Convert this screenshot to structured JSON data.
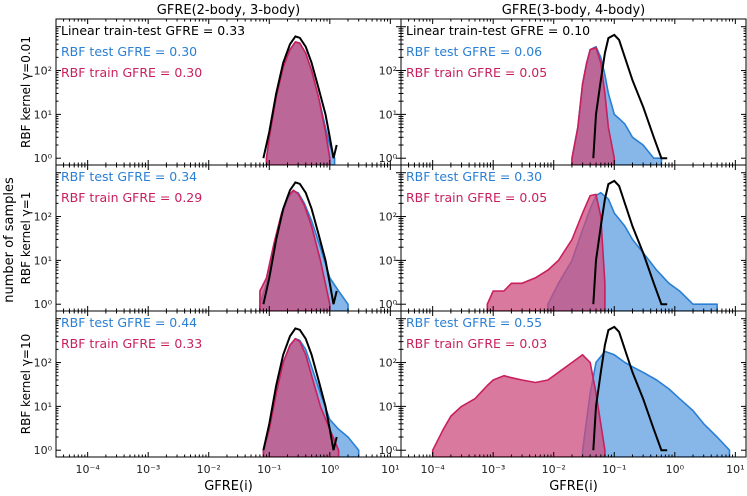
{
  "colors": {
    "linear": "#000000",
    "test": "#2a7fd4",
    "test_fill": "#5f9fe0",
    "train": "#c8205e",
    "train_fill": "#cc4c7c",
    "axis": "#000000"
  },
  "figure": {
    "ylabel_shared": "number of samples"
  },
  "chart_data": [
    {
      "type": "area",
      "panel": "row1-col1",
      "title": "GFRE(2-body, 3-body)",
      "ylabel": "RBF kernel γ=0.01",
      "xlabel": "",
      "xscale": "log",
      "yscale": "log",
      "xlim": [
        3e-05,
        15
      ],
      "ylim": [
        0.7,
        1500
      ],
      "xticks": [
        "10⁻⁴",
        "10⁻³",
        "10⁻²",
        "10⁻¹",
        "10⁰",
        "10¹"
      ],
      "yticks": [
        "10⁰",
        "10¹",
        "10²"
      ],
      "show_xtick_labels": false,
      "annotations": [
        {
          "text": "Linear train-test GFRE = 0.33",
          "color": "linear"
        },
        {
          "text": "RBF test GFRE = 0.30",
          "color": "test"
        },
        {
          "text": "RBF train GFRE = 0.30",
          "color": "train"
        }
      ],
      "series": [
        {
          "role": "linear",
          "x": [
            0.08,
            0.1,
            0.13,
            0.17,
            0.22,
            0.27,
            0.32,
            0.4,
            0.5,
            0.65,
            0.85,
            1.0,
            1.15,
            1.3
          ],
          "y": [
            1,
            4,
            30,
            150,
            400,
            600,
            560,
            350,
            150,
            40,
            10,
            3,
            1,
            2
          ]
        },
        {
          "role": "test",
          "x": [
            0.09,
            0.1,
            0.13,
            0.17,
            0.22,
            0.27,
            0.32,
            0.4,
            0.5,
            0.65,
            0.85,
            1.0,
            1.2
          ],
          "y": [
            1,
            3,
            25,
            120,
            300,
            450,
            420,
            250,
            100,
            25,
            5,
            2,
            1
          ]
        },
        {
          "role": "train",
          "x": [
            0.09,
            0.1,
            0.13,
            0.17,
            0.22,
            0.27,
            0.32,
            0.4,
            0.5,
            0.65,
            0.85,
            1.0
          ],
          "y": [
            1,
            3,
            25,
            120,
            300,
            450,
            420,
            250,
            100,
            25,
            4,
            1
          ]
        }
      ]
    },
    {
      "type": "area",
      "panel": "row1-col2",
      "title": "GFRE(3-body, 4-body)",
      "ylabel": "",
      "xlabel": "",
      "xscale": "log",
      "yscale": "log",
      "xlim": [
        3e-05,
        15
      ],
      "ylim": [
        0.7,
        1500
      ],
      "xticks": [
        "10⁻⁴",
        "10⁻³",
        "10⁻²",
        "10⁻¹",
        "10⁰",
        "10¹"
      ],
      "yticks": [
        "10⁰",
        "10¹",
        "10²"
      ],
      "show_xtick_labels": false,
      "annotations": [
        {
          "text": "Linear train-test GFRE = 0.10",
          "color": "linear"
        },
        {
          "text": "RBF test GFRE = 0.06",
          "color": "test"
        },
        {
          "text": "RBF train GFRE = 0.05",
          "color": "train"
        }
      ],
      "series": [
        {
          "role": "linear",
          "x": [
            0.045,
            0.05,
            0.06,
            0.07,
            0.08,
            0.1,
            0.12,
            0.15,
            0.2,
            0.3,
            0.45,
            0.6,
            0.75
          ],
          "y": [
            1,
            10,
            60,
            250,
            550,
            650,
            500,
            200,
            60,
            15,
            3,
            1,
            1
          ]
        },
        {
          "role": "test",
          "x": [
            0.02,
            0.025,
            0.03,
            0.035,
            0.04,
            0.05,
            0.06,
            0.07,
            0.08,
            0.1,
            0.12,
            0.15,
            0.2,
            0.3,
            0.45,
            0.6
          ],
          "y": [
            1,
            5,
            50,
            150,
            300,
            350,
            200,
            80,
            30,
            10,
            8,
            6,
            3,
            2,
            1,
            1
          ]
        },
        {
          "role": "train",
          "x": [
            0.02,
            0.025,
            0.03,
            0.035,
            0.04,
            0.05,
            0.06,
            0.07,
            0.08,
            0.1
          ],
          "y": [
            1,
            5,
            50,
            150,
            300,
            330,
            150,
            30,
            5,
            1
          ]
        }
      ]
    },
    {
      "type": "area",
      "panel": "row2-col1",
      "title": "",
      "ylabel": "RBF kernel γ=1",
      "xlabel": "",
      "xscale": "log",
      "yscale": "log",
      "xlim": [
        3e-05,
        15
      ],
      "ylim": [
        0.7,
        1500
      ],
      "xticks": [
        "10⁻⁴",
        "10⁻³",
        "10⁻²",
        "10⁻¹",
        "10⁰",
        "10¹"
      ],
      "yticks": [
        "10⁰",
        "10¹",
        "10²"
      ],
      "show_xtick_labels": false,
      "annotations": [
        {
          "text": "RBF test GFRE = 0.34",
          "color": "test"
        },
        {
          "text": "RBF train GFRE = 0.29",
          "color": "train"
        }
      ],
      "series": [
        {
          "role": "linear",
          "x": [
            0.08,
            0.1,
            0.13,
            0.17,
            0.22,
            0.27,
            0.32,
            0.4,
            0.5,
            0.65,
            0.85,
            1.0,
            1.15,
            1.3
          ],
          "y": [
            1,
            4,
            30,
            150,
            400,
            600,
            560,
            350,
            150,
            40,
            10,
            3,
            1,
            2
          ]
        },
        {
          "role": "test",
          "x": [
            0.07,
            0.09,
            0.12,
            0.16,
            0.2,
            0.25,
            0.3,
            0.38,
            0.5,
            0.7,
            1.0,
            1.4,
            2.0
          ],
          "y": [
            1,
            3,
            20,
            100,
            250,
            380,
            350,
            200,
            80,
            20,
            4,
            2,
            1
          ]
        },
        {
          "role": "train",
          "x": [
            0.07,
            0.09,
            0.12,
            0.16,
            0.2,
            0.25,
            0.3,
            0.38,
            0.5,
            0.7,
            1.0
          ],
          "y": [
            2,
            4,
            25,
            120,
            280,
            400,
            330,
            180,
            60,
            10,
            1
          ]
        }
      ]
    },
    {
      "type": "area",
      "panel": "row2-col2",
      "title": "",
      "ylabel": "",
      "xlabel": "",
      "xscale": "log",
      "yscale": "log",
      "xlim": [
        3e-05,
        15
      ],
      "ylim": [
        0.7,
        1500
      ],
      "xticks": [
        "10⁻⁴",
        "10⁻³",
        "10⁻²",
        "10⁻¹",
        "10⁰",
        "10¹"
      ],
      "yticks": [
        "10⁰",
        "10¹",
        "10²"
      ],
      "show_xtick_labels": false,
      "annotations": [
        {
          "text": "RBF test GFRE = 0.30",
          "color": "test"
        },
        {
          "text": "RBF train GFRE = 0.05",
          "color": "train"
        }
      ],
      "series": [
        {
          "role": "linear",
          "x": [
            0.045,
            0.05,
            0.06,
            0.07,
            0.08,
            0.1,
            0.12,
            0.15,
            0.2,
            0.3,
            0.45,
            0.6,
            0.75
          ],
          "y": [
            1,
            10,
            60,
            250,
            550,
            650,
            500,
            200,
            60,
            15,
            3,
            1,
            1
          ]
        },
        {
          "role": "test",
          "x": [
            0.008,
            0.012,
            0.02,
            0.03,
            0.04,
            0.05,
            0.06,
            0.08,
            0.1,
            0.15,
            0.2,
            0.3,
            0.5,
            0.8,
            1.2,
            2.0,
            3.0,
            5.0
          ],
          "y": [
            1,
            3,
            10,
            50,
            150,
            300,
            350,
            250,
            120,
            60,
            30,
            15,
            6,
            3,
            2,
            1,
            1,
            1
          ]
        },
        {
          "role": "train",
          "x": [
            0.0008,
            0.001,
            0.0015,
            0.002,
            0.003,
            0.005,
            0.008,
            0.012,
            0.02,
            0.03,
            0.04,
            0.05,
            0.06,
            0.07
          ],
          "y": [
            1,
            2,
            2,
            3,
            3,
            4,
            6,
            10,
            30,
            120,
            300,
            320,
            100,
            3
          ]
        }
      ]
    },
    {
      "type": "area",
      "panel": "row3-col1",
      "title": "",
      "ylabel": "RBF kernel γ=10",
      "xlabel": "GFRE(i)",
      "xscale": "log",
      "yscale": "log",
      "xlim": [
        3e-05,
        15
      ],
      "ylim": [
        0.7,
        1500
      ],
      "xticks": [
        "10⁻⁴",
        "10⁻³",
        "10⁻²",
        "10⁻¹",
        "10⁰",
        "10¹"
      ],
      "yticks": [
        "10⁰",
        "10¹",
        "10²"
      ],
      "show_xtick_labels": true,
      "annotations": [
        {
          "text": "RBF test GFRE = 0.44",
          "color": "test"
        },
        {
          "text": "RBF train GFRE = 0.33",
          "color": "train"
        }
      ],
      "series": [
        {
          "role": "linear",
          "x": [
            0.08,
            0.1,
            0.13,
            0.17,
            0.22,
            0.27,
            0.32,
            0.4,
            0.5,
            0.65,
            0.85,
            1.0,
            1.15,
            1.3
          ],
          "y": [
            1,
            4,
            30,
            150,
            400,
            600,
            560,
            350,
            150,
            40,
            10,
            3,
            1,
            2
          ]
        },
        {
          "role": "test",
          "x": [
            0.08,
            0.1,
            0.13,
            0.17,
            0.22,
            0.27,
            0.32,
            0.4,
            0.5,
            0.7,
            1.0,
            1.4,
            2.0,
            3.0
          ],
          "y": [
            1,
            3,
            20,
            100,
            250,
            350,
            320,
            200,
            80,
            20,
            5,
            3,
            2,
            1
          ]
        },
        {
          "role": "train",
          "x": [
            0.08,
            0.1,
            0.13,
            0.17,
            0.22,
            0.27,
            0.32,
            0.4,
            0.5,
            0.7,
            1.0,
            1.4
          ],
          "y": [
            1,
            3,
            20,
            100,
            250,
            350,
            300,
            150,
            50,
            10,
            3,
            1
          ]
        }
      ]
    },
    {
      "type": "area",
      "panel": "row3-col2",
      "title": "",
      "ylabel": "",
      "xlabel": "GFRE(i)",
      "xscale": "log",
      "yscale": "log",
      "xlim": [
        3e-05,
        15
      ],
      "ylim": [
        0.7,
        1500
      ],
      "xticks": [
        "10⁻⁴",
        "10⁻³",
        "10⁻²",
        "10⁻¹",
        "10⁰",
        "10¹"
      ],
      "yticks": [
        "10⁰",
        "10¹",
        "10²"
      ],
      "show_xtick_labels": true,
      "annotations": [
        {
          "text": "RBF test GFRE = 0.55",
          "color": "test"
        },
        {
          "text": "RBF train GFRE = 0.03",
          "color": "train"
        }
      ],
      "series": [
        {
          "role": "linear",
          "x": [
            0.045,
            0.05,
            0.06,
            0.07,
            0.08,
            0.1,
            0.12,
            0.15,
            0.2,
            0.3,
            0.45,
            0.6,
            0.75
          ],
          "y": [
            1,
            10,
            60,
            250,
            550,
            650,
            500,
            200,
            60,
            15,
            3,
            1,
            1
          ]
        },
        {
          "role": "test",
          "x": [
            0.03,
            0.04,
            0.05,
            0.07,
            0.1,
            0.15,
            0.2,
            0.3,
            0.5,
            0.8,
            1.2,
            2.0,
            3.0,
            5.0,
            8.0
          ],
          "y": [
            1,
            20,
            100,
            180,
            150,
            100,
            80,
            60,
            40,
            25,
            15,
            8,
            4,
            2,
            1
          ]
        },
        {
          "role": "train",
          "x": [
            0.0001,
            0.00015,
            0.0002,
            0.0003,
            0.0005,
            0.0008,
            0.001,
            0.0015,
            0.002,
            0.003,
            0.005,
            0.008,
            0.012,
            0.02,
            0.03,
            0.04,
            0.05,
            0.07
          ],
          "y": [
            1,
            3,
            6,
            10,
            15,
            30,
            40,
            50,
            45,
            40,
            35,
            40,
            60,
            100,
            150,
            100,
            20,
            1
          ]
        }
      ]
    }
  ]
}
